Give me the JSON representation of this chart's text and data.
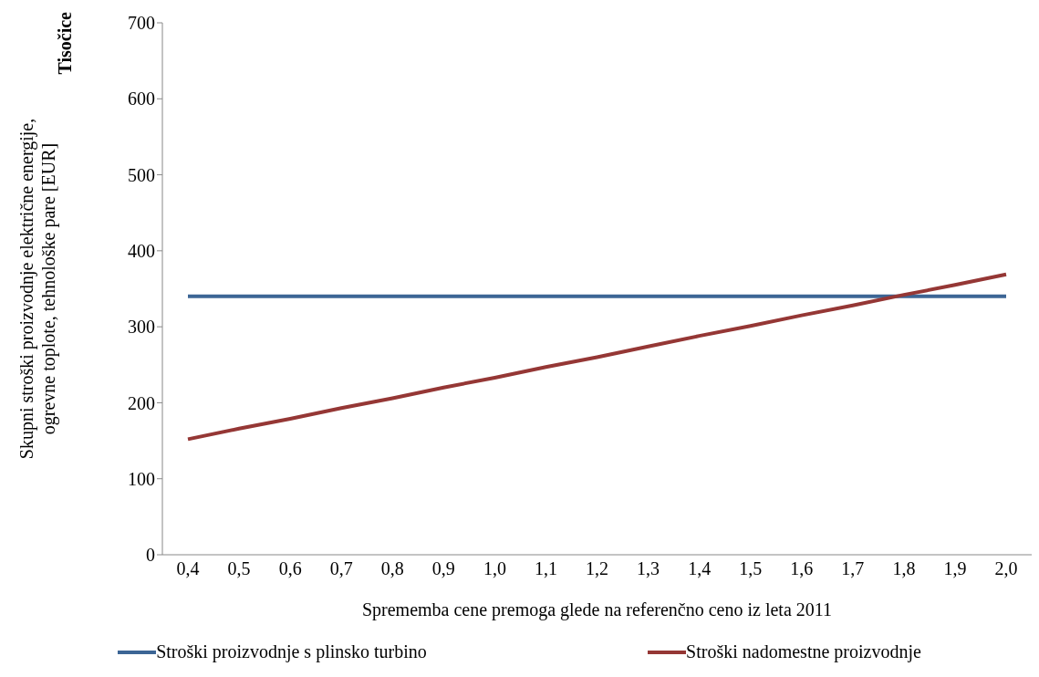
{
  "chart_data": {
    "type": "line",
    "xlabel": "Sprememba cene premoga glede na referenčno ceno iz leta 2011",
    "ylabel": "Skupni stroški proizvodnje električne energije, ogrevne toplote, tehnološke pare [EUR]",
    "annotations": [
      "Tisočice"
    ],
    "categories": [
      "0,4",
      "0,5",
      "0,6",
      "0,7",
      "0,8",
      "0,9",
      "1,0",
      "1,1",
      "1,2",
      "1,3",
      "1,4",
      "1,5",
      "1,6",
      "1,7",
      "1,8",
      "1,9",
      "2,0"
    ],
    "series": [
      {
        "name": "Stroški proizvodnje s plinsko turbino",
        "color": "#3c6595",
        "values": [
          340,
          340,
          340,
          340,
          340,
          340,
          340,
          340,
          340,
          340,
          340,
          340,
          340,
          340,
          340,
          340,
          340
        ]
      },
      {
        "name": "Stroški nadomestne proizvodnje",
        "color": "#953735",
        "values": [
          152,
          166,
          179,
          193,
          206,
          220,
          233,
          247,
          260,
          274,
          288,
          301,
          315,
          328,
          342,
          355,
          369
        ]
      }
    ],
    "ylim": [
      0,
      700
    ],
    "yticks": [
      0,
      100,
      200,
      300,
      400,
      500,
      600,
      700
    ],
    "grid": false,
    "legend": "bottom",
    "marker": "none",
    "line_style": "solid"
  }
}
